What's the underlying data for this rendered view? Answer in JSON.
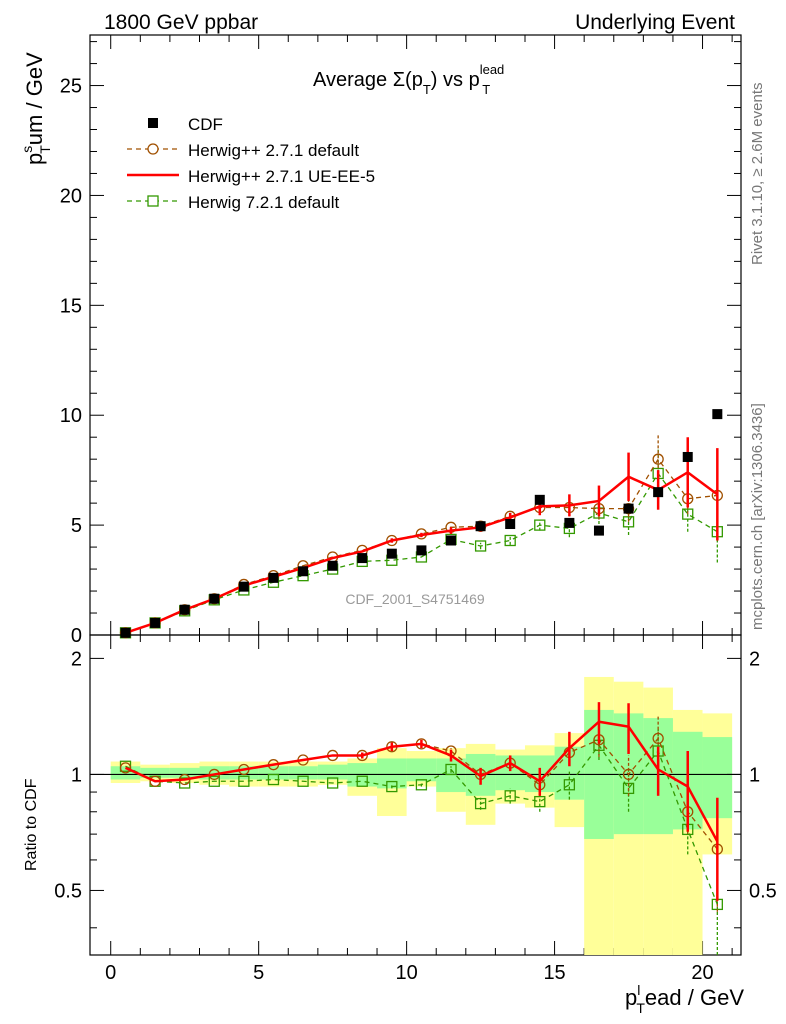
{
  "header": {
    "left": "1800 GeV ppbar",
    "right": "Underlying Event"
  },
  "side_text": {
    "rivet": "Rivet 3.1.10, ≥ 2.6M events",
    "mcplots": "mcplots.cern.ch [arXiv:1306.3436]"
  },
  "watermark": "CDF_2001_S4751469",
  "plot_title": {
    "main": "Average Σ(p",
    "sub1": "T",
    "mid": ") vs p",
    "sup": "lead",
    "sub2": "T"
  },
  "axis_labels": {
    "y_main_base": "p",
    "y_main_sup": "s",
    "y_main_sub": "T",
    "y_main_rest": "um / GeV",
    "y_ratio": "Ratio to CDF",
    "x_base": "p",
    "x_sup": "l",
    "x_sub": "T",
    "x_rest": "ead / GeV"
  },
  "chart_data": [
    {
      "type": "scatter",
      "title": "Average Σ(pT) vs pT lead",
      "xlabel": "pTlead / GeV",
      "ylabel": "pTsum / GeV",
      "xlim": [
        -0.7,
        21.3
      ],
      "ylim": [
        0,
        27.3
      ],
      "xticks": [
        "0",
        "5",
        "10",
        "15",
        "20"
      ],
      "yticks": [
        "0",
        "5",
        "10",
        "15",
        "20",
        "25"
      ],
      "grid": false,
      "legend_position": "top-left",
      "series": [
        {
          "name": "CDF",
          "style": "black-square-markers",
          "color": "#000000",
          "x": [
            0.5,
            1.5,
            2.5,
            3.5,
            4.5,
            5.5,
            6.5,
            7.5,
            8.5,
            9.5,
            10.5,
            11.5,
            12.5,
            13.5,
            14.5,
            15.5,
            16.5,
            17.5,
            18.5,
            19.5,
            20.5
          ],
          "y": [
            0.1,
            0.55,
            1.15,
            1.65,
            2.2,
            2.6,
            2.9,
            3.15,
            3.5,
            3.7,
            3.85,
            4.3,
            4.95,
            5.05,
            6.15,
            5.1,
            4.75,
            5.75,
            6.5,
            8.1,
            10.05
          ]
        },
        {
          "name": "Herwig++ 2.7.1 default",
          "style": "dashed-line-open-circles",
          "color": "#a05000",
          "x": [
            0.5,
            1.5,
            2.5,
            3.5,
            4.5,
            5.5,
            6.5,
            7.5,
            8.5,
            9.5,
            10.5,
            11.5,
            12.5,
            13.5,
            14.5,
            15.5,
            16.5,
            17.5,
            18.5,
            19.5,
            20.5
          ],
          "y": [
            0.1,
            0.55,
            1.15,
            1.65,
            2.3,
            2.7,
            3.15,
            3.55,
            3.85,
            4.3,
            4.6,
            4.9,
            4.95,
            5.4,
            5.8,
            5.8,
            5.75,
            5.75,
            8.0,
            6.2,
            6.35
          ],
          "err": [
            0,
            0,
            0,
            0,
            0,
            0,
            0,
            0,
            0,
            0,
            0.1,
            0.1,
            0.15,
            0.2,
            0.3,
            0.4,
            0.5,
            0.6,
            1.1,
            0.7,
            2.0
          ]
        },
        {
          "name": "Herwig++ 2.7.1 UE-EE-5",
          "style": "solid-line",
          "color": "#ff0000",
          "x": [
            0.5,
            1.5,
            2.5,
            3.5,
            4.5,
            5.5,
            6.5,
            7.5,
            8.5,
            9.5,
            10.5,
            11.5,
            12.5,
            13.5,
            14.5,
            15.5,
            16.5,
            17.5,
            18.5,
            19.5,
            20.5
          ],
          "y": [
            0.1,
            0.55,
            1.15,
            1.65,
            2.25,
            2.65,
            3.05,
            3.5,
            3.8,
            4.3,
            4.55,
            4.75,
            4.9,
            5.35,
            5.85,
            5.9,
            6.1,
            7.2,
            6.6,
            7.4,
            6.4
          ],
          "err": [
            0,
            0,
            0,
            0,
            0,
            0,
            0,
            0,
            0,
            0.1,
            0.1,
            0.15,
            0.2,
            0.2,
            0.4,
            0.5,
            0.7,
            1.1,
            0.9,
            1.6,
            2.1
          ]
        },
        {
          "name": "Herwig 7.2.1 default",
          "style": "dashed-line-open-squares",
          "color": "#339900",
          "x": [
            0.5,
            1.5,
            2.5,
            3.5,
            4.5,
            5.5,
            6.5,
            7.5,
            8.5,
            9.5,
            10.5,
            11.5,
            12.5,
            13.5,
            14.5,
            15.5,
            16.5,
            17.5,
            18.5,
            19.5,
            20.5
          ],
          "y": [
            0.1,
            0.55,
            1.1,
            1.6,
            2.05,
            2.4,
            2.7,
            3.0,
            3.35,
            3.4,
            3.55,
            4.35,
            4.05,
            4.3,
            5.0,
            4.85,
            5.55,
            5.15,
            7.35,
            5.5,
            4.7
          ],
          "err": [
            0,
            0,
            0,
            0,
            0,
            0,
            0,
            0,
            0,
            0,
            0,
            0.1,
            0.15,
            0.2,
            0.25,
            0.4,
            0.5,
            0.6,
            1.1,
            0.8,
            1.4
          ]
        }
      ]
    },
    {
      "type": "scatter",
      "title": "",
      "xlabel": "pTlead / GeV",
      "ylabel": "Ratio to CDF",
      "xlim": [
        -0.7,
        21.3
      ],
      "ylim": [
        0.34,
        2.3
      ],
      "xticks": [
        "0",
        "5",
        "10",
        "15",
        "20"
      ],
      "yticks": [
        "0.5",
        "1",
        "2"
      ],
      "grid": false,
      "reference_line": 1,
      "uncertainty_bands": {
        "colors": {
          "outer": "#ffff99",
          "inner": "#99ff99"
        },
        "x_edges": [
          0,
          1,
          2,
          3,
          4,
          5,
          6,
          7,
          8,
          9,
          10,
          11,
          12,
          13,
          14,
          15,
          16,
          17,
          18,
          19,
          20,
          21
        ],
        "outer": [
          [
            0.95,
            1.08
          ],
          [
            0.96,
            1.06
          ],
          [
            0.95,
            1.07
          ],
          [
            0.94,
            1.08
          ],
          [
            0.93,
            1.08
          ],
          [
            0.93,
            1.08
          ],
          [
            0.93,
            1.08
          ],
          [
            0.94,
            1.08
          ],
          [
            0.88,
            1.1
          ],
          [
            0.78,
            1.17
          ],
          [
            0.93,
            1.15
          ],
          [
            0.8,
            1.17
          ],
          [
            0.74,
            1.2
          ],
          [
            0.84,
            1.16
          ],
          [
            0.82,
            1.19
          ],
          [
            0.73,
            1.28
          ],
          [
            0.3,
            1.79
          ],
          [
            0.3,
            1.74
          ],
          [
            0.3,
            1.68
          ],
          [
            0.3,
            1.47
          ],
          [
            0.62,
            1.44
          ]
        ],
        "inner": [
          [
            0.97,
            1.05
          ],
          [
            0.98,
            1.04
          ],
          [
            0.98,
            1.04
          ],
          [
            0.97,
            1.05
          ],
          [
            0.97,
            1.05
          ],
          [
            0.97,
            1.05
          ],
          [
            0.97,
            1.05
          ],
          [
            0.97,
            1.06
          ],
          [
            0.93,
            1.07
          ],
          [
            0.92,
            1.1
          ],
          [
            0.96,
            1.1
          ],
          [
            0.9,
            1.1
          ],
          [
            0.88,
            1.13
          ],
          [
            0.91,
            1.12
          ],
          [
            0.9,
            1.12
          ],
          [
            0.86,
            1.18
          ],
          [
            0.68,
            1.47
          ],
          [
            0.7,
            1.44
          ],
          [
            0.7,
            1.4
          ],
          [
            0.72,
            1.29
          ],
          [
            0.77,
            1.25
          ]
        ]
      },
      "series": [
        {
          "name": "Herwig++ 2.7.1 default",
          "color": "#a05000",
          "x": [
            0.5,
            1.5,
            2.5,
            3.5,
            4.5,
            5.5,
            6.5,
            7.5,
            8.5,
            9.5,
            10.5,
            11.5,
            12.5,
            13.5,
            14.5,
            15.5,
            16.5,
            17.5,
            18.5,
            19.5,
            20.5
          ],
          "y": [
            1.04,
            0.96,
            0.97,
            1.0,
            1.03,
            1.06,
            1.09,
            1.12,
            1.12,
            1.18,
            1.2,
            1.15,
            1.0,
            1.07,
            0.94,
            1.14,
            1.23,
            1.0,
            1.24,
            0.8,
            0.64
          ],
          "err": [
            0,
            0,
            0,
            0,
            0,
            0,
            0,
            0,
            0,
            0,
            0.02,
            0.02,
            0.03,
            0.04,
            0.06,
            0.08,
            0.12,
            0.12,
            0.18,
            0.1,
            0.2
          ]
        },
        {
          "name": "Herwig++ 2.7.1 UE-EE-5",
          "color": "#ff0000",
          "x": [
            0.5,
            1.5,
            2.5,
            3.5,
            4.5,
            5.5,
            6.5,
            7.5,
            8.5,
            9.5,
            10.5,
            11.5,
            12.5,
            13.5,
            14.5,
            15.5,
            16.5,
            17.5,
            18.5,
            19.5,
            20.5
          ],
          "y": [
            1.04,
            0.96,
            0.97,
            1.0,
            1.03,
            1.06,
            1.09,
            1.12,
            1.12,
            1.18,
            1.2,
            1.12,
            0.99,
            1.07,
            0.96,
            1.17,
            1.37,
            1.33,
            1.03,
            0.93,
            0.67
          ],
          "err": [
            0,
            0,
            0,
            0,
            0,
            0,
            0,
            0,
            0.02,
            0.03,
            0.03,
            0.04,
            0.05,
            0.05,
            0.08,
            0.12,
            0.17,
            0.2,
            0.15,
            0.22,
            0.2
          ]
        },
        {
          "name": "Herwig 7.2.1 default",
          "color": "#339900",
          "x": [
            0.5,
            1.5,
            2.5,
            3.5,
            4.5,
            5.5,
            6.5,
            7.5,
            8.5,
            9.5,
            10.5,
            11.5,
            12.5,
            13.5,
            14.5,
            15.5,
            16.5,
            17.5,
            18.5,
            19.5,
            20.5
          ],
          "y": [
            1.05,
            0.96,
            0.95,
            0.96,
            0.96,
            0.97,
            0.96,
            0.95,
            0.96,
            0.93,
            0.94,
            1.03,
            0.84,
            0.88,
            0.85,
            0.94,
            1.19,
            0.92,
            1.15,
            0.72,
            0.46
          ],
          "err": [
            0,
            0,
            0,
            0,
            0,
            0,
            0,
            0,
            0,
            0.01,
            0.01,
            0.02,
            0.03,
            0.04,
            0.05,
            0.08,
            0.1,
            0.12,
            0.16,
            0.1,
            0.12
          ]
        }
      ]
    }
  ]
}
